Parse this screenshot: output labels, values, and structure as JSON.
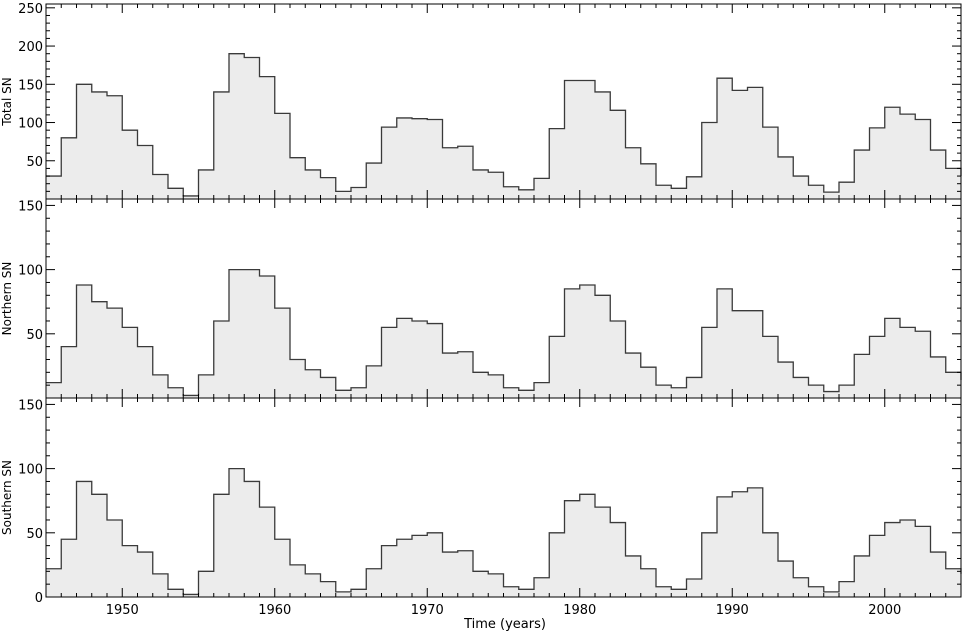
{
  "chart_data": {
    "type": "area",
    "xlabel": "Time (years)",
    "xlim": [
      1945,
      2005
    ],
    "x_ticks": [
      1950,
      1960,
      1970,
      1980,
      1990,
      2000
    ],
    "x_tick_labels": [
      "1950",
      "1960",
      "1970",
      "1980",
      "1990",
      "2000"
    ],
    "grid": false,
    "legend": "none",
    "style": {
      "line_color": "#3a3a3a",
      "fill_color": "#ececec"
    },
    "panels": [
      {
        "ylabel": "Total SN",
        "ylim": [
          0,
          255
        ],
        "y_ticks": [
          50,
          100,
          150,
          200,
          250
        ],
        "y_tick_labels": [
          "50",
          "100",
          "150",
          "200",
          "250"
        ],
        "series": [
          {
            "x": [
              1945,
              1946,
              1947,
              1948,
              1949,
              1950,
              1951,
              1952,
              1953,
              1954,
              1955,
              1956,
              1957,
              1958,
              1959,
              1960,
              1961,
              1962,
              1963,
              1964,
              1965,
              1966,
              1967,
              1968,
              1969,
              1970,
              1971,
              1972,
              1973,
              1974,
              1975,
              1976,
              1977,
              1978,
              1979,
              1980,
              1981,
              1982,
              1983,
              1984,
              1985,
              1986,
              1987,
              1988,
              1989,
              1990,
              1991,
              1992,
              1993,
              1994,
              1995,
              1996,
              1997,
              1998,
              1999,
              2000,
              2001,
              2002,
              2003,
              2004,
              2005
            ],
            "values": [
              30,
              80,
              150,
              140,
              135,
              90,
              70,
              32,
              14,
              4,
              38,
              140,
              190,
              185,
              160,
              112,
              54,
              38,
              28,
              10,
              15,
              47,
              94,
              106,
              105,
              104,
              67,
              69,
              38,
              35,
              16,
              12,
              27,
              92,
              155,
              155,
              140,
              116,
              67,
              46,
              18,
              14,
              29,
              100,
              158,
              142,
              146,
              94,
              55,
              30,
              18,
              9,
              22,
              64,
              93,
              120,
              111,
              104,
              64,
              40,
              30
            ]
          }
        ]
      },
      {
        "ylabel": "Northern SN",
        "ylim": [
          0,
          155
        ],
        "y_ticks": [
          50,
          100,
          150
        ],
        "y_tick_labels": [
          "50",
          "100",
          "150"
        ],
        "series": [
          {
            "x": [
              1945,
              1946,
              1947,
              1948,
              1949,
              1950,
              1951,
              1952,
              1953,
              1954,
              1955,
              1956,
              1957,
              1958,
              1959,
              1960,
              1961,
              1962,
              1963,
              1964,
              1965,
              1966,
              1967,
              1968,
              1969,
              1970,
              1971,
              1972,
              1973,
              1974,
              1975,
              1976,
              1977,
              1978,
              1979,
              1980,
              1981,
              1982,
              1983,
              1984,
              1985,
              1986,
              1987,
              1988,
              1989,
              1990,
              1991,
              1992,
              1993,
              1994,
              1995,
              1996,
              1997,
              1998,
              1999,
              2000,
              2001,
              2002,
              2003,
              2004,
              2005
            ],
            "values": [
              12,
              40,
              88,
              75,
              70,
              55,
              40,
              18,
              8,
              2,
              18,
              60,
              100,
              100,
              95,
              70,
              30,
              22,
              16,
              6,
              8,
              25,
              55,
              62,
              60,
              58,
              35,
              36,
              20,
              18,
              8,
              6,
              12,
              48,
              85,
              88,
              80,
              60,
              35,
              24,
              10,
              8,
              16,
              55,
              85,
              68,
              68,
              48,
              28,
              16,
              10,
              5,
              10,
              34,
              48,
              62,
              55,
              52,
              32,
              20,
              14
            ]
          }
        ]
      },
      {
        "ylabel": "Southern SN",
        "ylim": [
          0,
          155
        ],
        "y_ticks": [
          0,
          50,
          100,
          150
        ],
        "y_tick_labels": [
          "0",
          "50",
          "100",
          "150"
        ],
        "series": [
          {
            "x": [
              1945,
              1946,
              1947,
              1948,
              1949,
              1950,
              1951,
              1952,
              1953,
              1954,
              1955,
              1956,
              1957,
              1958,
              1959,
              1960,
              1961,
              1962,
              1963,
              1964,
              1965,
              1966,
              1967,
              1968,
              1969,
              1970,
              1971,
              1972,
              1973,
              1974,
              1975,
              1976,
              1977,
              1978,
              1979,
              1980,
              1981,
              1982,
              1983,
              1984,
              1985,
              1986,
              1987,
              1988,
              1989,
              1990,
              1991,
              1992,
              1993,
              1994,
              1995,
              1996,
              1997,
              1998,
              1999,
              2000,
              2001,
              2002,
              2003,
              2004,
              2005
            ],
            "values": [
              22,
              45,
              90,
              80,
              60,
              40,
              35,
              18,
              6,
              2,
              20,
              80,
              100,
              90,
              70,
              45,
              25,
              18,
              12,
              4,
              6,
              22,
              40,
              45,
              48,
              50,
              35,
              36,
              20,
              18,
              8,
              6,
              15,
              50,
              75,
              80,
              70,
              58,
              32,
              22,
              8,
              6,
              14,
              50,
              78,
              82,
              85,
              50,
              28,
              15,
              8,
              4,
              12,
              32,
              48,
              58,
              60,
              55,
              35,
              22,
              18
            ]
          }
        ]
      }
    ]
  }
}
